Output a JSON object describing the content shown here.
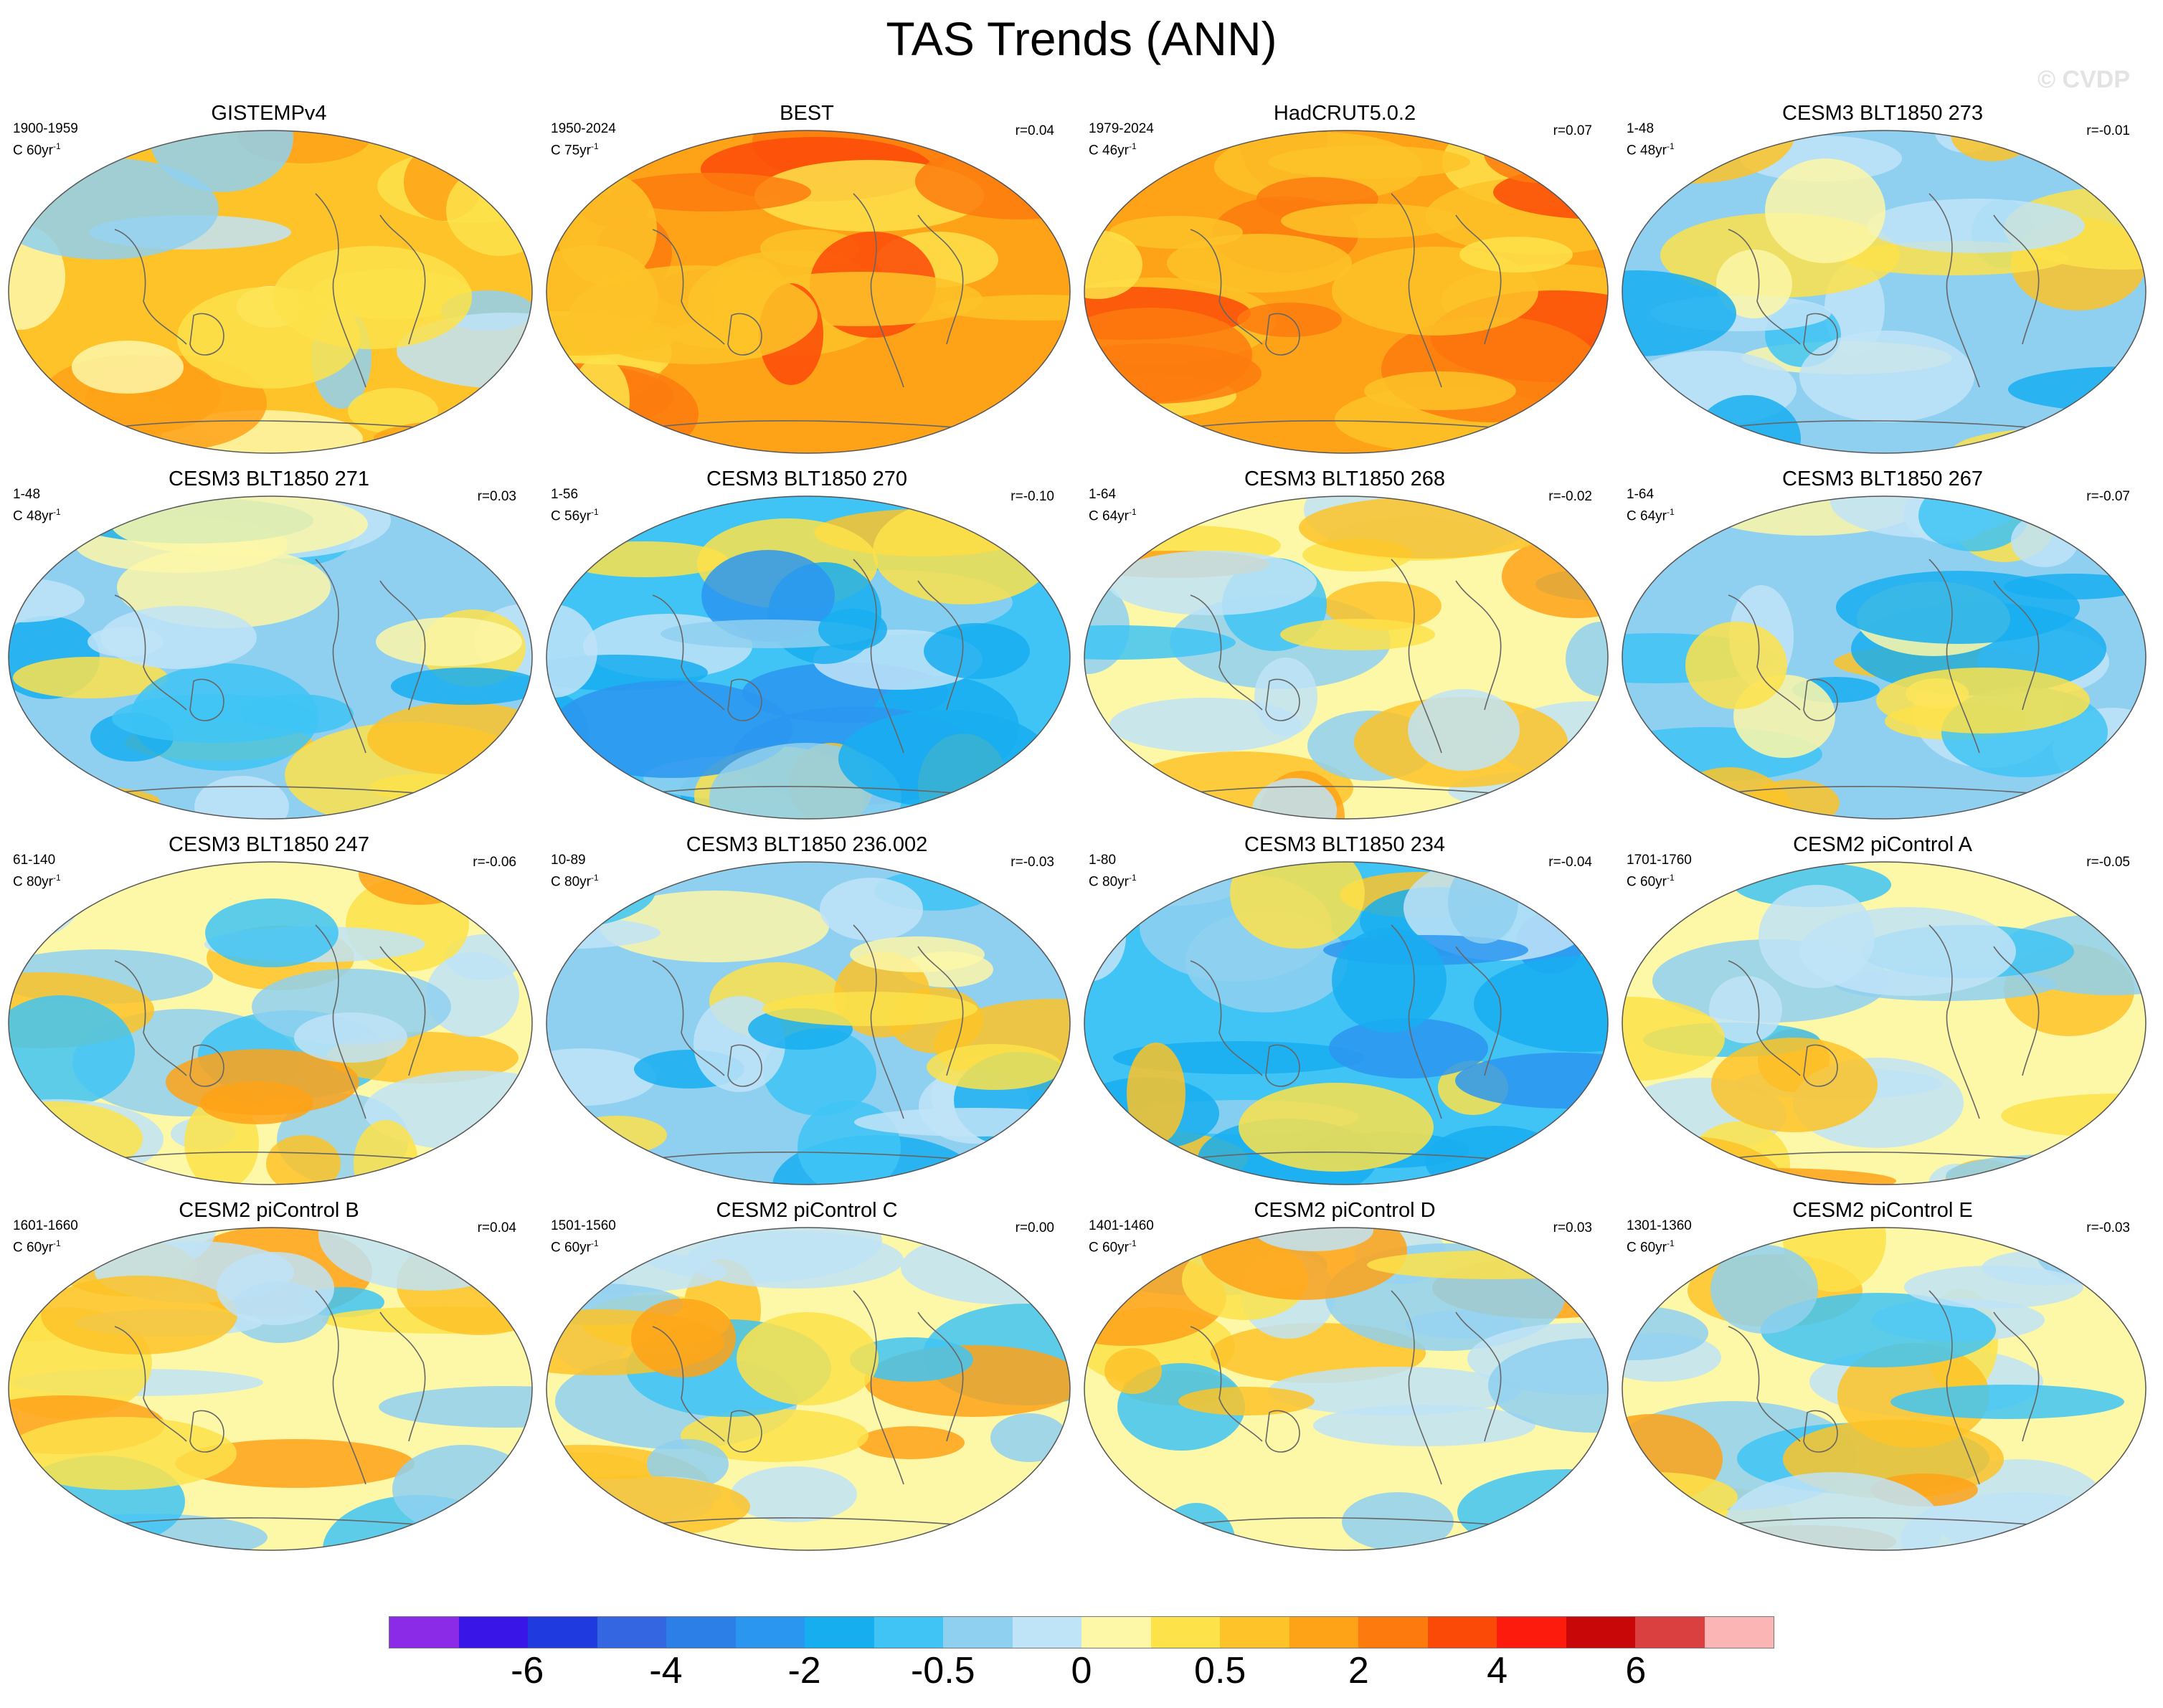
{
  "title": "TAS Trends (ANN)",
  "watermark": "© CVDP",
  "panels": [
    {
      "title": "GISTEMPv4",
      "period": "1900-1959",
      "length": "C 60yr",
      "r": "",
      "base": "warm"
    },
    {
      "title": "BEST",
      "period": "1950-2024",
      "length": "C 75yr",
      "r": "r=0.04",
      "base": "hot"
    },
    {
      "title": "HadCRUT5.0.2",
      "period": "1979-2024",
      "length": "C 46yr",
      "r": "r=0.07",
      "base": "hot"
    },
    {
      "title": "CESM3 BLT1850 273",
      "period": "1-48",
      "length": "C 48yr",
      "r": "r=-0.01",
      "base": "cool"
    },
    {
      "title": "CESM3 BLT1850 271",
      "period": "1-48",
      "length": "C 48yr",
      "r": "r=0.03",
      "base": "cool"
    },
    {
      "title": "CESM3 BLT1850 270",
      "period": "1-56",
      "length": "C 56yr",
      "r": "r=-0.10",
      "base": "cold"
    },
    {
      "title": "CESM3 BLT1850 268",
      "period": "1-64",
      "length": "C 64yr",
      "r": "r=-0.02",
      "base": "mixed"
    },
    {
      "title": "CESM3 BLT1850 267",
      "period": "1-64",
      "length": "C 64yr",
      "r": "r=-0.07",
      "base": "cool"
    },
    {
      "title": "CESM3 BLT1850 247",
      "period": "61-140",
      "length": "C 80yr",
      "r": "r=-0.06",
      "base": "mixed"
    },
    {
      "title": "CESM3 BLT1850 236.002",
      "period": "10-89",
      "length": "C 80yr",
      "r": "r=-0.03",
      "base": "cool"
    },
    {
      "title": "CESM3 BLT1850 234",
      "period": "1-80",
      "length": "C 80yr",
      "r": "r=-0.04",
      "base": "cold"
    },
    {
      "title": "CESM2 piControl A",
      "period": "1701-1760",
      "length": "C 60yr",
      "r": "r=-0.05",
      "base": "mixed"
    },
    {
      "title": "CESM2 piControl B",
      "period": "1601-1660",
      "length": "C 60yr",
      "r": "r=0.04",
      "base": "mixed"
    },
    {
      "title": "CESM2 piControl C",
      "period": "1501-1560",
      "length": "C 60yr",
      "r": "r=0.00",
      "base": "mixed"
    },
    {
      "title": "CESM2 piControl D",
      "period": "1401-1460",
      "length": "C 60yr",
      "r": "r=0.03",
      "base": "mixed"
    },
    {
      "title": "CESM2 piControl E",
      "period": "1301-1360",
      "length": "C 60yr",
      "r": "r=-0.03",
      "base": "mixed"
    }
  ],
  "yr_unit": "-1",
  "colorbar": {
    "colors": [
      "#8b2be8",
      "#3a15e8",
      "#1f3be0",
      "#3366e0",
      "#2c7fe6",
      "#2b96f0",
      "#17aef0",
      "#3fc4f5",
      "#8fd0f0",
      "#bfe3f7",
      "#fdf7a8",
      "#fde24a",
      "#fdc328",
      "#fea218",
      "#fd7b0e",
      "#fb4a08",
      "#fc1b0c",
      "#c80808",
      "#db4040",
      "#fbb5b5"
    ],
    "labels": [
      "-6",
      "-4",
      "-2",
      "-0.5",
      "0",
      "0.5",
      "2",
      "4",
      "6"
    ],
    "label_slots": [
      2,
      4,
      6,
      8,
      10,
      12,
      14,
      16,
      18
    ]
  },
  "chart_data": {
    "type": "heatmap",
    "title": "TAS Trends (ANN)",
    "projection": "Robinson (global maps)",
    "contour_levels": [
      -8,
      -7,
      -6,
      -5,
      -4,
      -3,
      -2,
      -1,
      -0.5,
      -0.25,
      0,
      0.25,
      0.5,
      1,
      2,
      3,
      4,
      5,
      6,
      7
    ],
    "colorbar_tick_labels": [
      "-6",
      "-4",
      "-2",
      "-0.5",
      "0",
      "0.5",
      "2",
      "4",
      "6"
    ],
    "panels": [
      {
        "title": "GISTEMPv4",
        "period": "1900-1959",
        "length": "C 60yr-1",
        "r": null
      },
      {
        "title": "BEST",
        "period": "1950-2024",
        "length": "C 75yr-1",
        "r": 0.04
      },
      {
        "title": "HadCRUT5.0.2",
        "period": "1979-2024",
        "length": "C 46yr-1",
        "r": 0.07
      },
      {
        "title": "CESM3 BLT1850 273",
        "period": "1-48",
        "length": "C 48yr-1",
        "r": -0.01
      },
      {
        "title": "CESM3 BLT1850 271",
        "period": "1-48",
        "length": "C 48yr-1",
        "r": 0.03
      },
      {
        "title": "CESM3 BLT1850 270",
        "period": "1-56",
        "length": "C 56yr-1",
        "r": -0.1
      },
      {
        "title": "CESM3 BLT1850 268",
        "period": "1-64",
        "length": "C 64yr-1",
        "r": -0.02
      },
      {
        "title": "CESM3 BLT1850 267",
        "period": "1-64",
        "length": "C 64yr-1",
        "r": -0.07
      },
      {
        "title": "CESM3 BLT1850 247",
        "period": "61-140",
        "length": "C 80yr-1",
        "r": -0.06
      },
      {
        "title": "CESM3 BLT1850 236.002",
        "period": "10-89",
        "length": "C 80yr-1",
        "r": -0.03
      },
      {
        "title": "CESM3 BLT1850 234",
        "period": "1-80",
        "length": "C 80yr-1",
        "r": -0.04
      },
      {
        "title": "CESM2 piControl A",
        "period": "1701-1760",
        "length": "C 60yr-1",
        "r": -0.05
      },
      {
        "title": "CESM2 piControl B",
        "period": "1601-1660",
        "length": "C 60yr-1",
        "r": 0.04
      },
      {
        "title": "CESM2 piControl C",
        "period": "1501-1560",
        "length": "C 60yr-1",
        "r": 0.0
      },
      {
        "title": "CESM2 piControl D",
        "period": "1401-1460",
        "length": "C 60yr-1",
        "r": 0.03
      },
      {
        "title": "CESM2 piControl E",
        "period": "1301-1360",
        "length": "C 60yr-1",
        "r": -0.03
      }
    ]
  }
}
